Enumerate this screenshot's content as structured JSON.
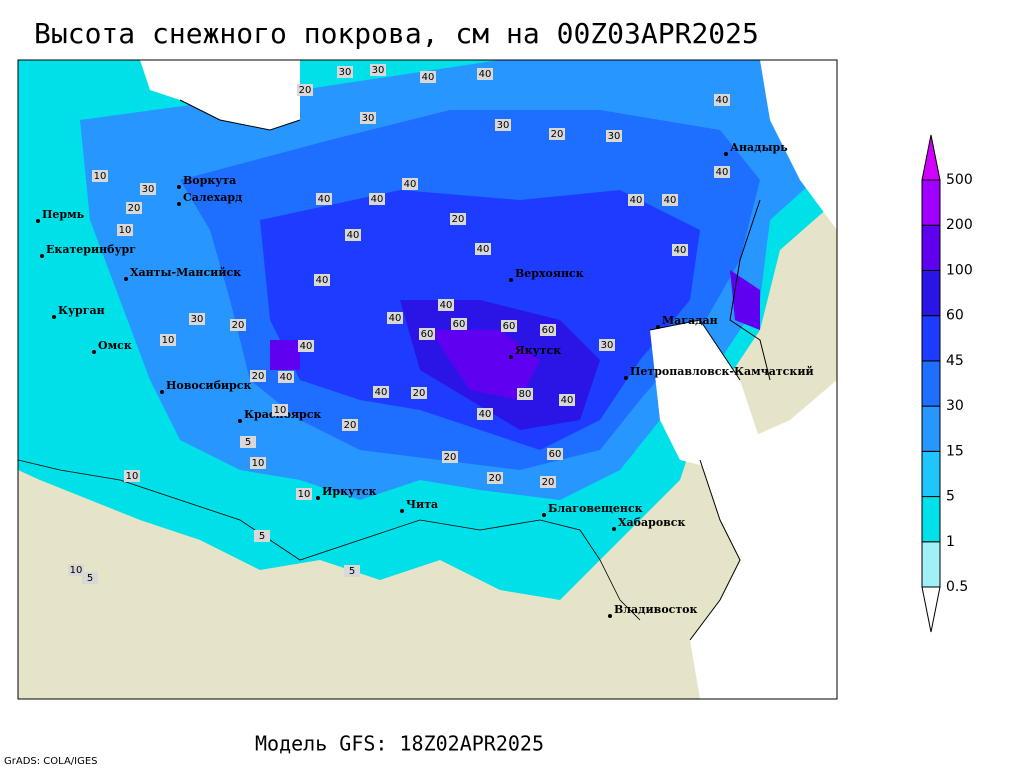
{
  "title": "Высота снежного покрова, см на 00Z03APR2025",
  "model": "Модель GFS: 18Z02APR2025",
  "credit": "GrADS: COLA/IGES",
  "cities": [
    "Воркута",
    "Салехард",
    "Пермь",
    "Екатеринбург",
    "Ханты-Мансийск",
    "Курган",
    "Омск",
    "Новосибирск",
    "Красноярск",
    "Иркутск",
    "Чита",
    "Верхоянск",
    "Якутск",
    "Магадан",
    "Петропавловск-Камчатский",
    "Анадырь",
    "Благовещенск",
    "Хабаровск",
    "Владивосток"
  ],
  "contour_labels": [
    30,
    30,
    40,
    40,
    20,
    30,
    30,
    20,
    30,
    40,
    40,
    40,
    10,
    30,
    20,
    40,
    40,
    40,
    40,
    40,
    20,
    10,
    40,
    40,
    60,
    60,
    60,
    80,
    60,
    40,
    40,
    40,
    40,
    60,
    20,
    20,
    40,
    20,
    20,
    10,
    40,
    10,
    30,
    10,
    20,
    20,
    10,
    5,
    5,
    10,
    10,
    5,
    5,
    40,
    20,
    40,
    30
  ],
  "legend": {
    "levels": [
      0.5,
      1,
      5,
      15,
      30,
      45,
      60,
      100,
      200,
      500
    ],
    "colors": [
      "#ffffff",
      "#a0f0f8",
      "#00e0e8",
      "#20c4ff",
      "#2896ff",
      "#1e6eff",
      "#1e3cff",
      "#2a14e6",
      "#6000f0",
      "#a000ff",
      "#d000ff"
    ]
  }
}
